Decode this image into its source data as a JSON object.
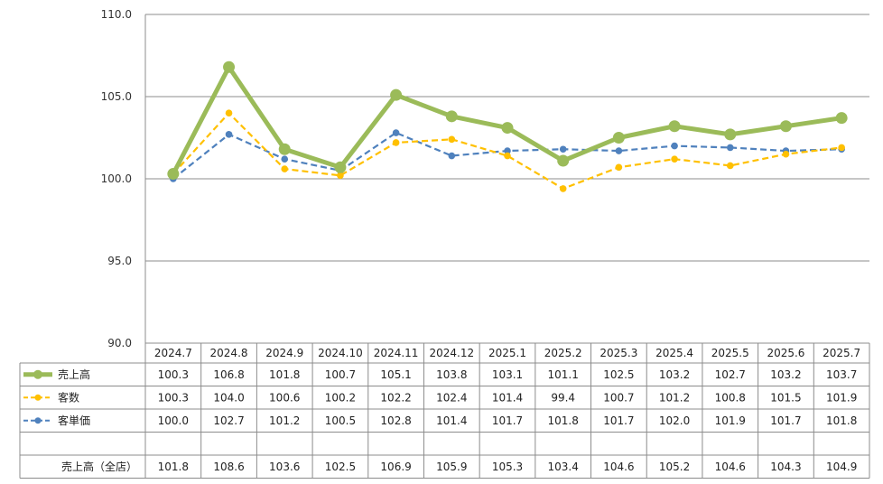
{
  "chart_data": {
    "type": "line",
    "categories": [
      "2024.7",
      "2024.8",
      "2024.9",
      "2024.10",
      "2024.11",
      "2024.12",
      "2025.1",
      "2025.2",
      "2025.3",
      "2025.4",
      "2025.5",
      "2025.6",
      "2025.7"
    ],
    "ylim": [
      90.0,
      110.0
    ],
    "yticks": [
      "110.0",
      "105.0",
      "100.0",
      "95.0",
      "90.0"
    ],
    "grid": true,
    "series": [
      {
        "name": "売上高",
        "color": "#9bbb59",
        "style": "solid",
        "values": [
          100.3,
          106.8,
          101.8,
          100.7,
          105.1,
          103.8,
          103.1,
          101.1,
          102.5,
          103.2,
          102.7,
          103.2,
          103.7
        ]
      },
      {
        "name": "客数",
        "color": "#ffc000",
        "style": "dashed",
        "values": [
          100.3,
          104.0,
          100.6,
          100.2,
          102.2,
          102.4,
          101.4,
          99.4,
          100.7,
          101.2,
          100.8,
          101.5,
          101.9
        ]
      },
      {
        "name": "客単価",
        "color": "#4f81bd",
        "style": "dashed",
        "values": [
          100.0,
          102.7,
          101.2,
          100.5,
          102.8,
          101.4,
          101.7,
          101.8,
          101.7,
          102.0,
          101.9,
          101.7,
          101.8
        ]
      }
    ],
    "table_rows": [
      {
        "label": "売上高",
        "values": [
          "100.3",
          "106.8",
          "101.8",
          "100.7",
          "105.1",
          "103.8",
          "103.1",
          "101.1",
          "102.5",
          "103.2",
          "102.7",
          "103.2",
          "103.7"
        ]
      },
      {
        "label": "客数",
        "values": [
          "100.3",
          "104.0",
          "100.6",
          "100.2",
          "102.2",
          "102.4",
          "101.4",
          "99.4",
          "100.7",
          "101.2",
          "100.8",
          "101.5",
          "101.9"
        ]
      },
      {
        "label": "客単価",
        "values": [
          "100.0",
          "102.7",
          "101.2",
          "100.5",
          "102.8",
          "101.4",
          "101.7",
          "101.8",
          "101.7",
          "102.0",
          "101.9",
          "101.7",
          "101.8"
        ]
      },
      {
        "label": "",
        "values": [
          "",
          "",
          "",
          "",
          "",
          "",
          "",
          "",
          "",
          "",
          "",
          "",
          ""
        ]
      },
      {
        "label": "売上高（全店）",
        "values": [
          "101.8",
          "108.6",
          "103.6",
          "102.5",
          "106.9",
          "105.9",
          "105.3",
          "103.4",
          "104.6",
          "105.2",
          "104.6",
          "104.3",
          "104.9"
        ]
      }
    ]
  }
}
